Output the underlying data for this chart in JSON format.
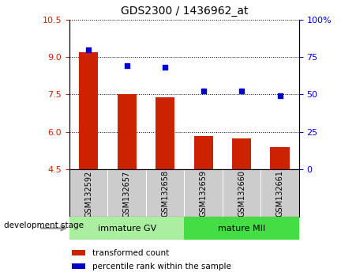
{
  "title": "GDS2300 / 1436962_at",
  "categories": [
    "GSM132592",
    "GSM132657",
    "GSM132658",
    "GSM132659",
    "GSM132660",
    "GSM132661"
  ],
  "bar_values": [
    9.2,
    7.5,
    7.4,
    5.85,
    5.75,
    5.4
  ],
  "dot_values": [
    9.3,
    8.65,
    8.6,
    7.65,
    7.65,
    7.45
  ],
  "bar_bottom": 4.5,
  "ylim": [
    4.5,
    10.5
  ],
  "yticks_left": [
    4.5,
    6.0,
    7.5,
    9.0,
    10.5
  ],
  "yticks_right": [
    0,
    25,
    50,
    75,
    100
  ],
  "ylim_right": [
    0,
    100
  ],
  "bar_color": "#cc2200",
  "dot_color": "#0000cc",
  "group1_label": "immature GV",
  "group2_label": "mature MII",
  "group_color1": "#aaeea0",
  "group_color2": "#44dd44",
  "sample_bg_color": "#cccccc",
  "legend_bar_label": "transformed count",
  "legend_dot_label": "percentile rank within the sample",
  "xlabel_label": "development stage",
  "figsize": [
    4.51,
    3.54
  ],
  "dpi": 100
}
